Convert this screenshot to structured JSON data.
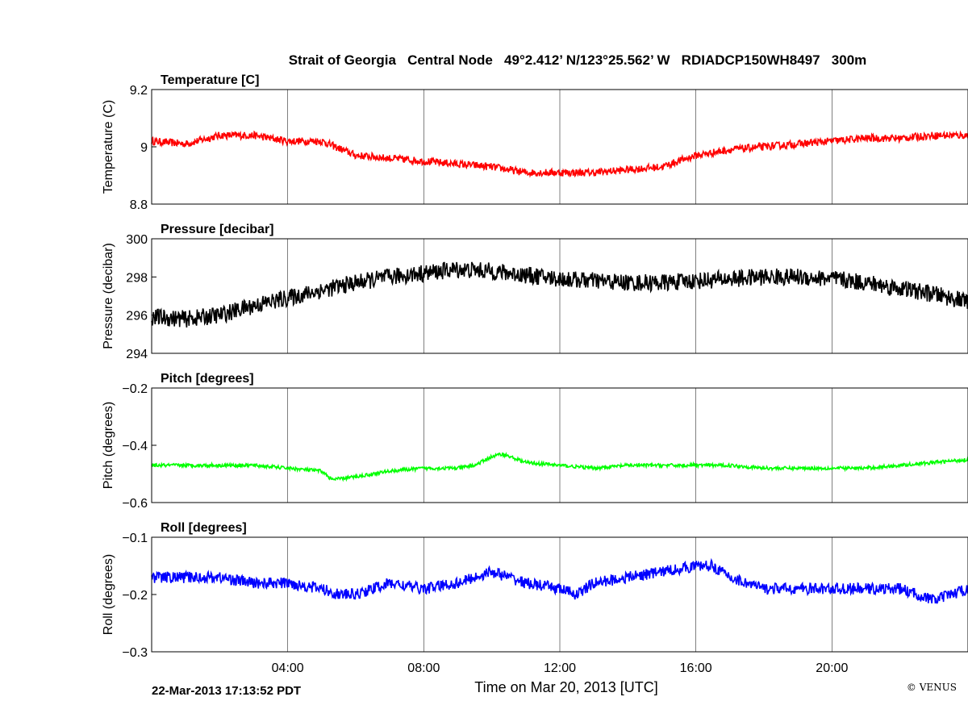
{
  "title": "Strait of Georgia   Central Node   49°2.412’ N/123°25.562’ W   RDIADCP150WH8497   300m",
  "timestamp": "22-Mar-2013 17:13:52 PDT",
  "copyright": "© VENUS",
  "colors": {
    "temperature": "#ff0000",
    "pressure": "#000000",
    "pitch": "#00ff00",
    "roll": "#0000ff"
  },
  "chart_data": [
    {
      "type": "line",
      "panel_title": "Temperature [C]",
      "ylabel": "Temperature (C)",
      "xlabel": "Time on Mar 20, 2013 [UTC]",
      "x_unit": "hours UTC",
      "xlim": [
        0,
        24
      ],
      "ylim": [
        8.8,
        9.2
      ],
      "yticks": [
        "8.8",
        "9",
        "9.2"
      ],
      "xticks": [
        "04:00",
        "08:00",
        "12:00",
        "16:00",
        "20:00"
      ],
      "xtick_values": [
        4,
        8,
        12,
        16,
        20
      ],
      "grid": true,
      "series": [
        {
          "color": "#ff0000",
          "noise": 0.013,
          "x": [
            0,
            1,
            2,
            3,
            4,
            5,
            6,
            7,
            8,
            9,
            10,
            11,
            12,
            13,
            14,
            15,
            16,
            17,
            18,
            19,
            20,
            21,
            22,
            23,
            24
          ],
          "y": [
            9.02,
            9.01,
            9.04,
            9.04,
            9.02,
            9.02,
            8.97,
            8.96,
            8.95,
            8.94,
            8.93,
            8.91,
            8.91,
            8.91,
            8.92,
            8.93,
            8.97,
            8.99,
            9.0,
            9.01,
            9.02,
            9.03,
            9.03,
            9.04,
            9.04
          ]
        }
      ]
    },
    {
      "type": "line",
      "panel_title": "Pressure [decibar]",
      "ylabel": "Pressure (decibar)",
      "xlim": [
        0,
        24
      ],
      "ylim": [
        294,
        300
      ],
      "yticks": [
        "294",
        "296",
        "298",
        "300"
      ],
      "xticks": [
        "04:00",
        "08:00",
        "12:00",
        "16:00",
        "20:00"
      ],
      "xtick_values": [
        4,
        8,
        12,
        16,
        20
      ],
      "grid": true,
      "series": [
        {
          "color": "#000000",
          "noise": 0.45,
          "x": [
            0,
            1,
            2,
            3,
            4,
            5,
            6,
            7,
            8,
            9,
            10,
            11,
            12,
            13,
            14,
            15,
            16,
            17,
            18,
            19,
            20,
            21,
            22,
            23,
            24
          ],
          "y": [
            295.9,
            295.8,
            296.0,
            296.5,
            296.9,
            297.3,
            297.7,
            298.0,
            298.2,
            298.4,
            298.3,
            298.1,
            297.9,
            297.8,
            297.7,
            297.7,
            297.8,
            297.9,
            298.0,
            298.0,
            297.9,
            297.7,
            297.4,
            297.1,
            296.7
          ]
        }
      ]
    },
    {
      "type": "line",
      "panel_title": "Pitch [degrees]",
      "ylabel": "Pitch (degrees)",
      "xlim": [
        0,
        24
      ],
      "ylim": [
        -0.6,
        -0.2
      ],
      "yticks": [
        "-0.6",
        "-0.4",
        "-0.2"
      ],
      "xticks": [
        "04:00",
        "08:00",
        "12:00",
        "16:00",
        "20:00"
      ],
      "xtick_values": [
        4,
        8,
        12,
        16,
        20
      ],
      "grid": true,
      "series": [
        {
          "color": "#00ff00",
          "noise": 0.006,
          "x": [
            0,
            1,
            2,
            3,
            4,
            5,
            5.3,
            6,
            7,
            8,
            9,
            9.5,
            10,
            10.3,
            11,
            12,
            13,
            14,
            15,
            16,
            17,
            18,
            19,
            20,
            21,
            22,
            23,
            24
          ],
          "y": [
            -0.47,
            -0.47,
            -0.47,
            -0.47,
            -0.48,
            -0.49,
            -0.52,
            -0.51,
            -0.49,
            -0.48,
            -0.48,
            -0.47,
            -0.44,
            -0.43,
            -0.46,
            -0.47,
            -0.48,
            -0.47,
            -0.47,
            -0.47,
            -0.47,
            -0.48,
            -0.48,
            -0.48,
            -0.48,
            -0.47,
            -0.46,
            -0.45
          ]
        }
      ]
    },
    {
      "type": "line",
      "panel_title": "Roll [degrees]",
      "ylabel": "Roll (degrees)",
      "xlim": [
        0,
        24
      ],
      "ylim": [
        -0.3,
        -0.1
      ],
      "yticks": [
        "-0.3",
        "-0.2",
        "-0.1"
      ],
      "xticks": [
        "04:00",
        "08:00",
        "12:00",
        "16:00",
        "20:00"
      ],
      "xtick_values": [
        4,
        8,
        12,
        16,
        20
      ],
      "grid": true,
      "series": [
        {
          "color": "#0000ff",
          "noise": 0.01,
          "x": [
            0,
            1,
            2,
            3,
            4,
            5,
            5.5,
            6,
            7,
            8,
            9,
            10,
            11,
            12,
            12.5,
            13,
            14,
            15,
            16,
            16.5,
            17,
            18,
            19,
            20,
            21,
            22,
            23,
            24
          ],
          "y": [
            -0.17,
            -0.17,
            -0.17,
            -0.18,
            -0.18,
            -0.19,
            -0.2,
            -0.2,
            -0.18,
            -0.19,
            -0.18,
            -0.16,
            -0.18,
            -0.19,
            -0.2,
            -0.18,
            -0.17,
            -0.16,
            -0.15,
            -0.15,
            -0.17,
            -0.19,
            -0.19,
            -0.19,
            -0.19,
            -0.19,
            -0.21,
            -0.19
          ]
        }
      ]
    }
  ]
}
